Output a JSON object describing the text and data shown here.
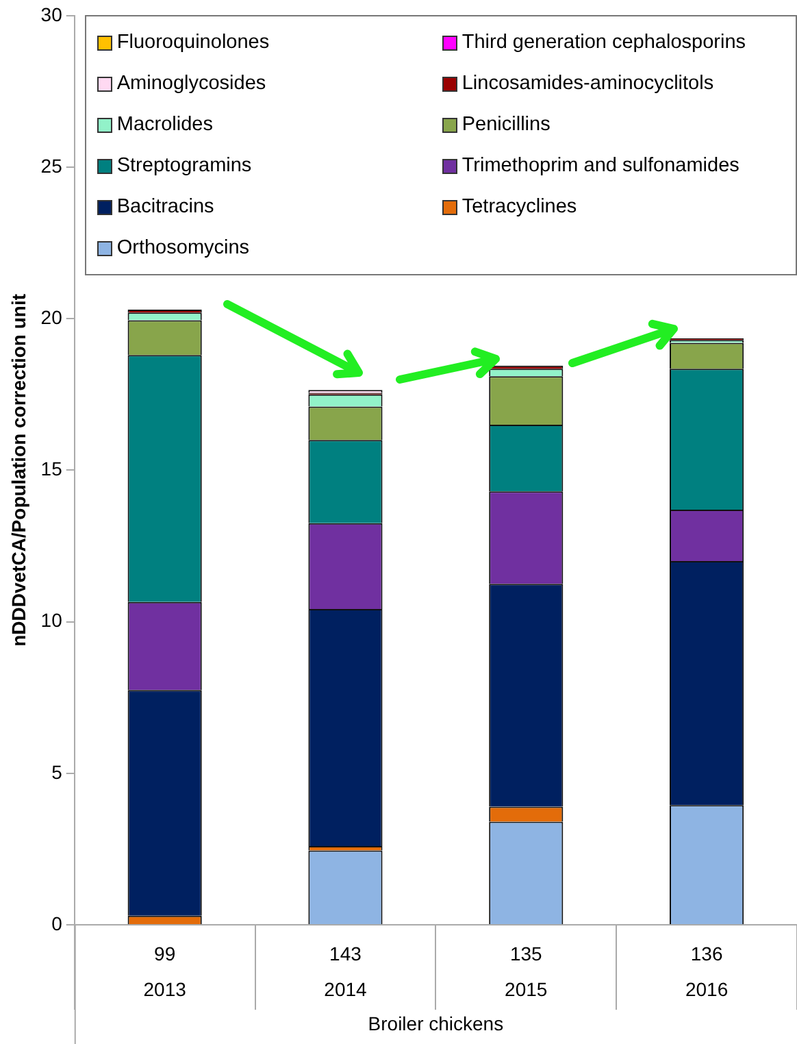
{
  "chart_data": {
    "type": "bar",
    "stacked": true,
    "ylabel": "nDDDvetCA/Population correction unit",
    "xlabel": "Broiler chickens",
    "categories": [
      "99\n2013",
      "143\n2014",
      "135\n2015",
      "136\n2016"
    ],
    "ylim": [
      0,
      30
    ],
    "yticks": [
      0,
      5,
      10,
      15,
      20,
      25,
      30
    ],
    "grid": false,
    "legend": "top",
    "series": [
      {
        "name": "Orthosomycins",
        "color": "#8eb4e3",
        "values": [
          0,
          2.45,
          3.4,
          3.95
        ]
      },
      {
        "name": "Tetracyclines",
        "color": "#e36c0a",
        "values": [
          0.3,
          0.15,
          0.5,
          0
        ]
      },
      {
        "name": "Bacitracins",
        "color": "#002060",
        "values": [
          7.45,
          7.82,
          7.35,
          8.05
        ]
      },
      {
        "name": "Trimethoprim and sulfonamides",
        "color": "#7030a0",
        "values": [
          2.9,
          2.83,
          3.05,
          1.7
        ]
      },
      {
        "name": "Streptogramins",
        "color": "#008080",
        "values": [
          8.15,
          2.75,
          2.2,
          4.65
        ]
      },
      {
        "name": "Penicillins",
        "color": "#88a54b",
        "values": [
          1.15,
          1.1,
          1.6,
          0.85
        ]
      },
      {
        "name": "Macrolides",
        "color": "#92f2c9",
        "values": [
          0.25,
          0.4,
          0.25,
          0.1
        ]
      },
      {
        "name": "Lincosamides-aminocyclitols",
        "color": "#990000",
        "values": [
          0.1,
          0.05,
          0.1,
          0.05
        ]
      },
      {
        "name": "Aminoglycosides",
        "color": "#ffd9f2",
        "values": [
          0,
          0.1,
          0,
          0
        ]
      },
      {
        "name": "Third generation cephalosporins",
        "color": "#ff00ff",
        "values": [
          0,
          0,
          0,
          0
        ]
      },
      {
        "name": "Fluoroquinolones",
        "color": "#ffc000",
        "values": [
          0,
          0,
          0,
          0
        ]
      }
    ]
  }
}
